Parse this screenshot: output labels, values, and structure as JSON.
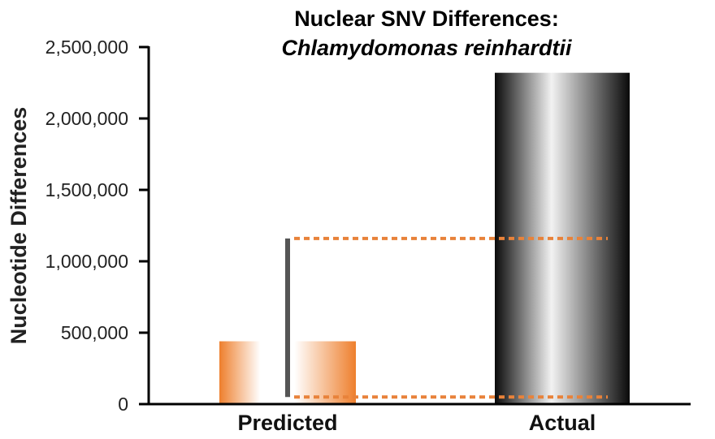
{
  "chart_data": {
    "type": "bar",
    "title": "Nuclear SNV Differences:",
    "subtitle": "Chlamydomonas reinhardtii",
    "xlabel": "",
    "ylabel": "Nucleotide Differences",
    "categories": [
      "Predicted",
      "Actual"
    ],
    "values": [
      440000,
      2320000
    ],
    "ylim": [
      0,
      2500000
    ],
    "yticks": [
      0,
      500000,
      1000000,
      1500000,
      2000000,
      2500000
    ],
    "ytick_labels": [
      "0",
      "500,000",
      "1,000,000",
      "1,500,000",
      "2,000,000",
      "2,500,000"
    ],
    "error_range": {
      "category": "Predicted",
      "low": 50000,
      "high": 1160000
    },
    "reference_lines": [
      1160000,
      50000
    ],
    "grid": false,
    "colors": {
      "predicted": "#ee7f2d",
      "actual": "#111111",
      "error_bar": "#555555",
      "reference_line": "#e8823a"
    }
  }
}
